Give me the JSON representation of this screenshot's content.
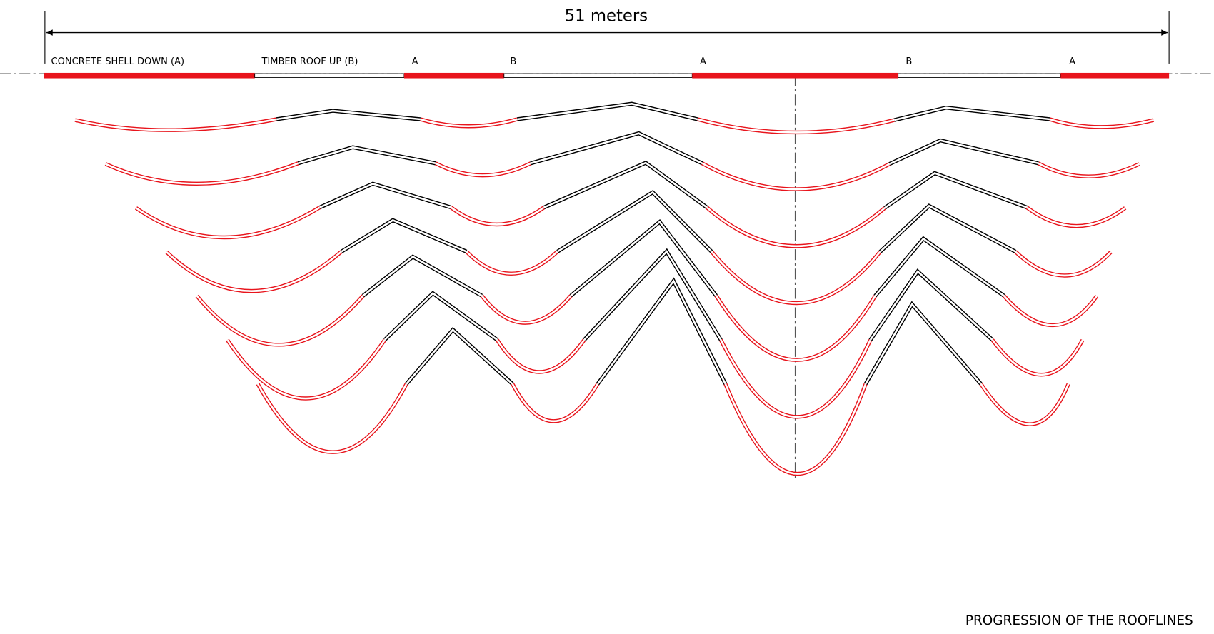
{
  "dimension": {
    "label": "51 meters"
  },
  "segments": [
    {
      "label": "CONCRETE SHELL DOWN (A)"
    },
    {
      "label": "TIMBER ROOF UP (B)"
    },
    {
      "label": "A"
    },
    {
      "label": "B"
    },
    {
      "label": "A"
    },
    {
      "label": "B"
    },
    {
      "label": "A"
    }
  ],
  "caption": "PROGRESSION OF THE ROOFLINES"
}
